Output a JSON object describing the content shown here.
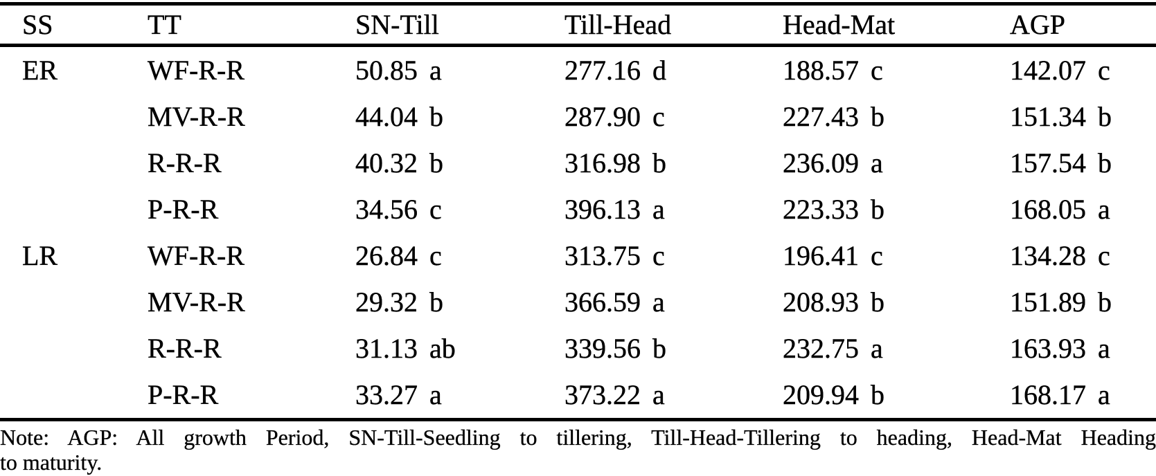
{
  "table": {
    "headers": [
      "SS",
      "TT",
      "SN-Till",
      "Till-Head",
      "Head-Mat",
      "AGP"
    ],
    "rows": [
      [
        "ER",
        "WF-R-R",
        "50.85 a",
        "277.16 d",
        "188.57 c",
        "142.07 c"
      ],
      [
        "",
        "MV-R-R",
        "44.04 b",
        "287.90 c",
        "227.43 b",
        "151.34 b"
      ],
      [
        "",
        "R-R-R",
        "40.32 b",
        "316.98 b",
        "236.09 a",
        "157.54 b"
      ],
      [
        "",
        "P-R-R",
        "34.56 c",
        "396.13 a",
        "223.33 b",
        "168.05 a"
      ],
      [
        "LR",
        "WF-R-R",
        "26.84 c",
        "313.75 c",
        "196.41 c",
        "134.28 c"
      ],
      [
        "",
        "MV-R-R",
        "29.32 b",
        "366.59 a",
        "208.93 b",
        "151.89 b"
      ],
      [
        "",
        "R-R-R",
        "31.13 ab",
        "339.56 b",
        "232.75 a",
        "163.93 a"
      ],
      [
        "",
        "P-R-R",
        "33.27 a",
        "373.22 a",
        "209.94 b",
        "168.17 a"
      ]
    ]
  },
  "note": {
    "line1": "Note: AGP: All growth Period, SN-Till-Seedling to tillering, Till-Head-Tillering to heading, Head-Mat Heading",
    "line2": "to maturity."
  }
}
